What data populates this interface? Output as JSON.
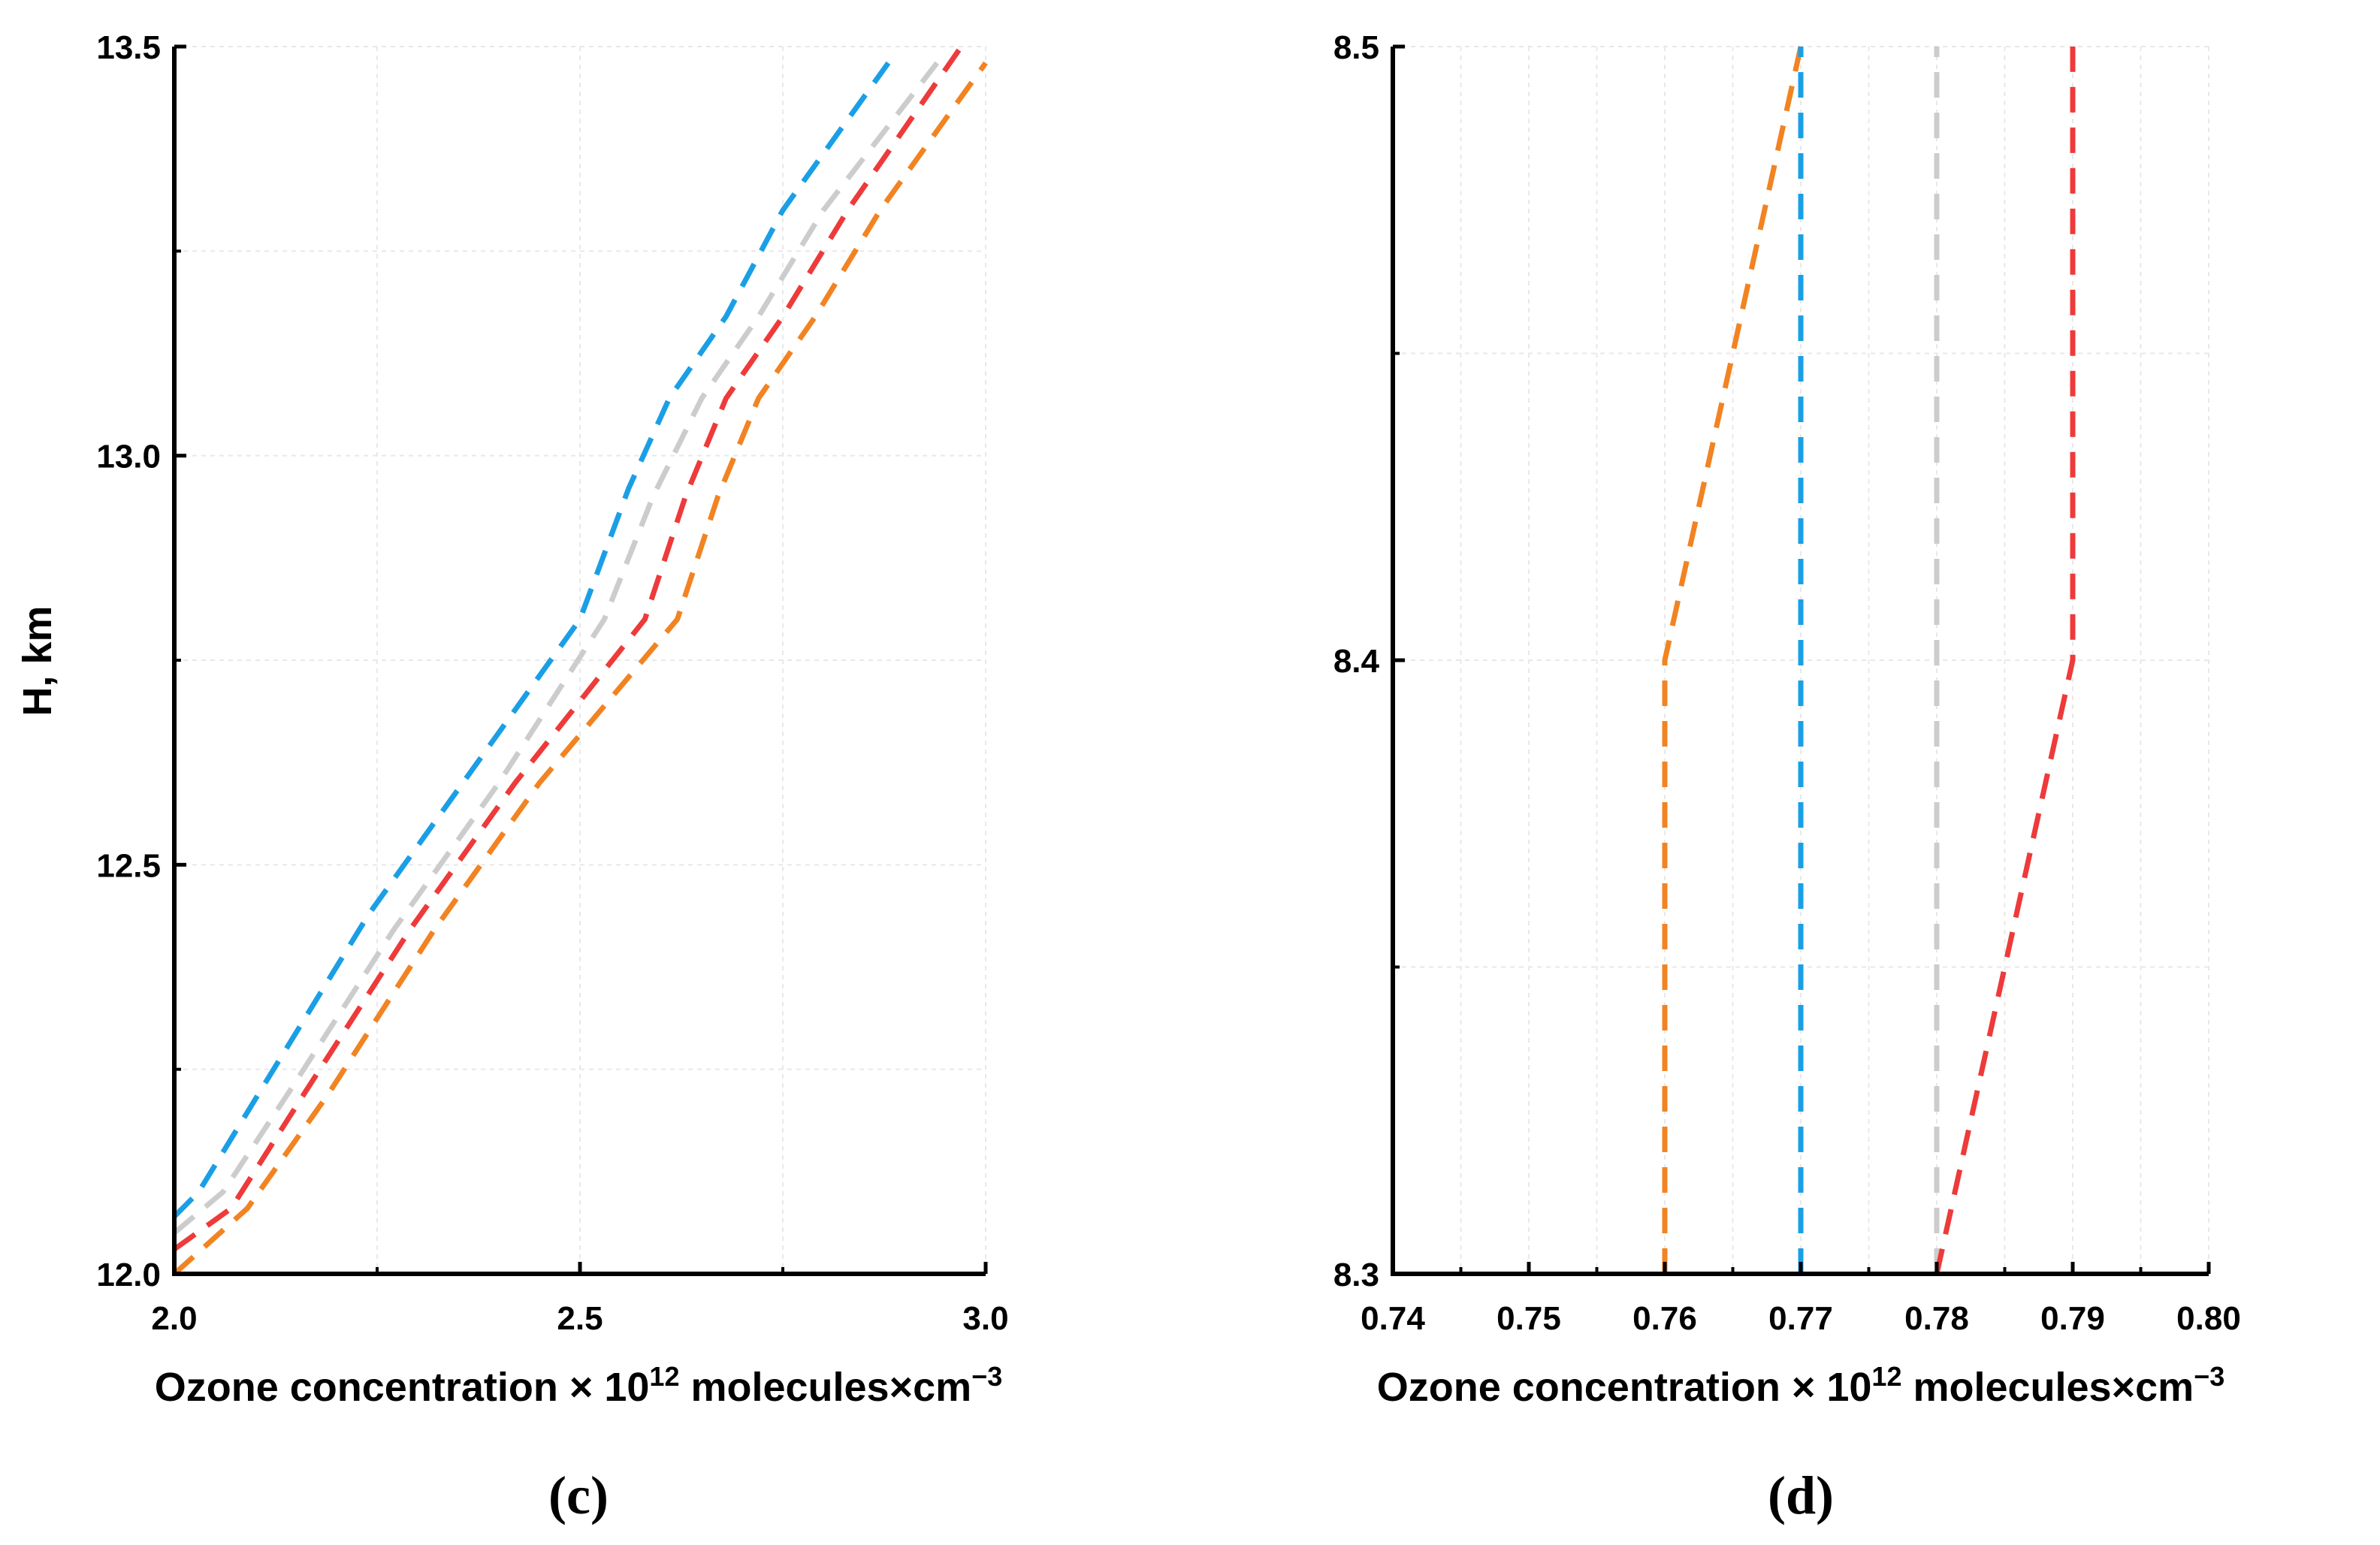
{
  "chart_data": [
    {
      "type": "line",
      "panel_label": "(c)",
      "xlabel": "Ozone concentration × 10¹² molecules×cm⁻³",
      "xlabel_parts": {
        "main": "Ozone concentration × 10",
        "sup1": "12",
        "mid": " molecules×cm",
        "sup2": "−3"
      },
      "ylabel": "H, km",
      "xlim": [
        2.0,
        3.0
      ],
      "ylim": [
        12.0,
        13.5
      ],
      "x_ticks": [
        "2.0",
        "2.5",
        "3.0"
      ],
      "y_ticks": [
        "12.0",
        "12.5",
        "13.0",
        "13.5"
      ],
      "grid": true,
      "line_style": "dashed",
      "series": [
        {
          "color": "#1a9fe6",
          "points": [
            [
              2.0,
              12.07
            ],
            [
              2.03,
              12.1
            ],
            [
              2.11,
              12.23
            ],
            [
              2.24,
              12.44
            ],
            [
              2.37,
              12.62
            ],
            [
              2.5,
              12.8
            ],
            [
              2.56,
              12.96
            ],
            [
              2.61,
              13.07
            ],
            [
              2.68,
              13.17
            ],
            [
              2.75,
              13.3
            ],
            [
              2.88,
              13.48
            ]
          ]
        },
        {
          "color": "#cccccc",
          "points": [
            [
              2.0,
              12.05
            ],
            [
              2.06,
              12.1
            ],
            [
              2.14,
              12.22
            ],
            [
              2.27,
              12.42
            ],
            [
              2.4,
              12.6
            ],
            [
              2.53,
              12.8
            ],
            [
              2.59,
              12.95
            ],
            [
              2.65,
              13.07
            ],
            [
              2.72,
              13.17
            ],
            [
              2.8,
              13.3
            ],
            [
              2.94,
              13.48
            ]
          ]
        },
        {
          "color": "#ee3a3a",
          "points": [
            [
              2.0,
              12.03
            ],
            [
              2.07,
              12.08
            ],
            [
              2.16,
              12.22
            ],
            [
              2.29,
              12.42
            ],
            [
              2.42,
              12.6
            ],
            [
              2.58,
              12.8
            ],
            [
              2.63,
              12.95
            ],
            [
              2.68,
              13.07
            ],
            [
              2.75,
              13.17
            ],
            [
              2.83,
              13.3
            ],
            [
              2.97,
              13.5
            ]
          ]
        },
        {
          "color": "#f28322",
          "points": [
            [
              2.0,
              12.0
            ],
            [
              2.09,
              12.08
            ],
            [
              2.19,
              12.22
            ],
            [
              2.32,
              12.42
            ],
            [
              2.45,
              12.6
            ],
            [
              2.62,
              12.8
            ],
            [
              2.67,
              12.95
            ],
            [
              2.72,
              13.07
            ],
            [
              2.79,
              13.17
            ],
            [
              2.87,
              13.3
            ],
            [
              3.0,
              13.48
            ]
          ]
        }
      ]
    },
    {
      "type": "line",
      "panel_label": "(d)",
      "xlabel": "Ozone concentration × 10¹² molecules×cm⁻³",
      "xlabel_parts": {
        "main": "Ozone concentration × 10",
        "sup1": "12",
        "mid": " molecules×cm",
        "sup2": "−3"
      },
      "ylabel": "",
      "xlim": [
        0.74,
        0.8
      ],
      "ylim": [
        8.3,
        8.5
      ],
      "x_ticks": [
        "0.74",
        "0.75",
        "0.76",
        "0.77",
        "0.78",
        "0.79",
        "0.80"
      ],
      "y_ticks": [
        "8.3",
        "8.4",
        "8.5"
      ],
      "grid": true,
      "line_style": "dashed",
      "series": [
        {
          "color": "#f28322",
          "points": [
            [
              0.76,
              8.3
            ],
            [
              0.76,
              8.4
            ],
            [
              0.77,
              8.5
            ]
          ]
        },
        {
          "color": "#1a9fe6",
          "points": [
            [
              0.77,
              8.3
            ],
            [
              0.77,
              8.4
            ],
            [
              0.77,
              8.5
            ]
          ]
        },
        {
          "color": "#cccccc",
          "points": [
            [
              0.78,
              8.3
            ],
            [
              0.78,
              8.4
            ],
            [
              0.78,
              8.5
            ]
          ]
        },
        {
          "color": "#ee3a3a",
          "points": [
            [
              0.78,
              8.3
            ],
            [
              0.79,
              8.4
            ],
            [
              0.79,
              8.5
            ]
          ]
        }
      ]
    }
  ]
}
